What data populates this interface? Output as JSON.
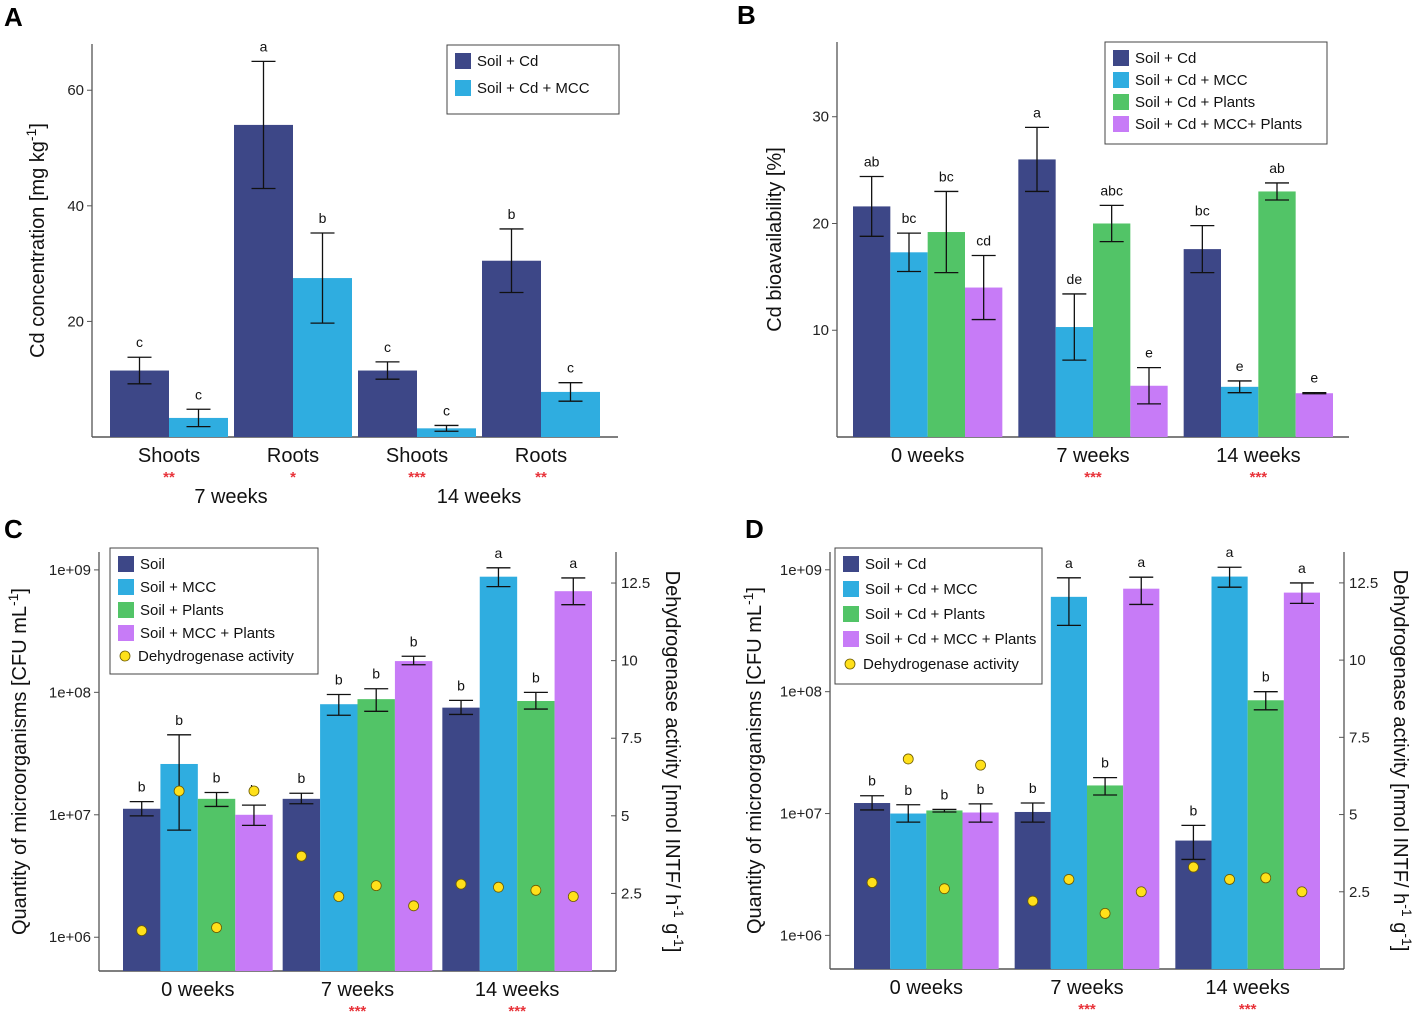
{
  "colors": {
    "navy": "#3d4787",
    "cyan": "#2fade0",
    "green": "#52c467",
    "violet": "#c77bf7",
    "dot": "#ffe01a",
    "stars": "#e8333a"
  },
  "chart_data": [
    {
      "panel": "A",
      "type": "bar",
      "ylabel": "Cd concentration [mg kg-1]",
      "ylim": [
        0,
        68
      ],
      "yticks": [
        20,
        40,
        60
      ],
      "groups": [
        "Shoots",
        "Roots",
        "Shoots",
        "Roots"
      ],
      "group_stars": [
        "**",
        "*",
        "***",
        "**"
      ],
      "supergroups": [
        {
          "label": "7 weeks",
          "span": [
            0,
            1
          ]
        },
        {
          "label": "14 weeks",
          "span": [
            2,
            3
          ]
        }
      ],
      "legend": "top-right",
      "series": [
        {
          "name": "Soil + Cd",
          "color": "navy",
          "values": [
            11.5,
            54,
            11.5,
            30.5
          ],
          "errors": [
            2.3,
            11,
            1.5,
            5.5
          ],
          "letters": [
            "c",
            "a",
            "c",
            "b"
          ]
        },
        {
          "name": "Soil + Cd + MCC",
          "color": "cyan",
          "values": [
            3.3,
            27.5,
            1.5,
            7.8
          ],
          "errors": [
            1.5,
            7.8,
            0.5,
            1.6
          ],
          "letters": [
            "c",
            "b",
            "c",
            "c"
          ]
        }
      ]
    },
    {
      "panel": "B",
      "type": "bar",
      "ylabel": "Cd bioavailability [%]",
      "ylim": [
        0,
        37
      ],
      "yticks": [
        10,
        20,
        30
      ],
      "groups": [
        "0 weeks",
        "7 weeks",
        "14 weeks"
      ],
      "group_stars": [
        "",
        "***",
        "***"
      ],
      "legend": "top-right",
      "series": [
        {
          "name": "Soil + Cd",
          "color": "navy",
          "values": [
            21.6,
            26.0,
            17.6
          ],
          "errors": [
            2.8,
            3.0,
            2.2
          ],
          "letters": [
            "ab",
            "a",
            "bc"
          ]
        },
        {
          "name": "Soil + Cd + MCC",
          "color": "cyan",
          "values": [
            17.3,
            10.3,
            4.7
          ],
          "errors": [
            1.8,
            3.1,
            0.55
          ],
          "letters": [
            "bc",
            "de",
            "e"
          ]
        },
        {
          "name": "Soil + Cd + Plants",
          "color": "green",
          "values": [
            19.2,
            20.0,
            23.0
          ],
          "errors": [
            3.8,
            1.7,
            0.8
          ],
          "letters": [
            "bc",
            "abc",
            "ab"
          ]
        },
        {
          "name": "Soil + Cd + MCC+ Plants",
          "color": "violet",
          "values": [
            14.0,
            4.8,
            4.1
          ],
          "errors": [
            3.0,
            1.7,
            0.05
          ],
          "letters": [
            "cd",
            "e",
            "e"
          ]
        }
      ]
    },
    {
      "panel": "C",
      "type": "bar",
      "ylabel": "Quantity of microorganisms [CFU mL-1]",
      "ylabel2": "Dehydrogenase activity [nmol INTF/ h-1 g-1]",
      "yscale": "log",
      "ylim": [
        530000.0,
        1400000000.0
      ],
      "yticks": [
        1000000.0,
        10000000.0,
        100000000.0,
        1000000000.0
      ],
      "yticklabels": [
        "1e+06",
        "1e+07",
        "1e+08",
        "1e+09"
      ],
      "y2lim": [
        0,
        13.5
      ],
      "y2ticks": [
        2.5,
        5,
        7.5,
        10,
        12.5
      ],
      "groups": [
        "0 weeks",
        "7 weeks",
        "14 weeks"
      ],
      "group_stars": [
        "",
        "***",
        "***"
      ],
      "legend": "top-left",
      "series": [
        {
          "name": "Soil",
          "color": "navy",
          "values": [
            11200000.0,
            13500000.0,
            75000000.0
          ],
          "err_lo": [
            9800000.0,
            12300000.0,
            66000000.0
          ],
          "err_hi": [
            12800000.0,
            15000000.0,
            86000000.0
          ],
          "letters": [
            "b",
            "b",
            "b"
          ],
          "dehydrogenase": [
            1.3,
            3.7,
            2.8
          ]
        },
        {
          "name": "Soil  + MCC",
          "color": "cyan",
          "values": [
            26000000.0,
            80000000.0,
            880000000.0
          ],
          "err_lo": [
            7500000.0,
            65000000.0,
            730000000.0
          ],
          "err_hi": [
            45000000.0,
            96000000.0,
            1040000000.0
          ],
          "letters": [
            "b",
            "b",
            "a"
          ],
          "dehydrogenase": [
            5.8,
            2.4,
            2.7
          ]
        },
        {
          "name": "Soil  + Plants",
          "color": "green",
          "values": [
            13500000.0,
            88000000.0,
            85000000.0
          ],
          "err_lo": [
            11700000.0,
            70000000.0,
            73000000.0
          ],
          "err_hi": [
            15200000.0,
            107000000.0,
            100000000.0
          ],
          "letters": [
            "b",
            "b",
            "b"
          ],
          "dehydrogenase": [
            1.4,
            2.75,
            2.6
          ]
        },
        {
          "name": "Soil + MCC + Plants",
          "color": "violet",
          "values": [
            10000000.0,
            180000000.0,
            670000000.0
          ],
          "err_lo": [
            8200000.0,
            168000000.0,
            520000000.0
          ],
          "err_hi": [
            12000000.0,
            197000000.0,
            860000000.0
          ],
          "letters": [
            "b",
            "b",
            "a"
          ],
          "dehydrogenase": [
            5.8,
            2.1,
            2.4
          ]
        }
      ],
      "dot_legend": "Dehydrogenase activity"
    },
    {
      "panel": "D",
      "type": "bar",
      "ylabel": "Quantity of microorganisms [CFU mL-1]",
      "ylabel2": "Dehydrogenase activity [nmol INTF/ h-1 g-1]",
      "yscale": "log",
      "ylim": [
        530000.0,
        1400000000.0
      ],
      "yticks": [
        1000000.0,
        10000000.0,
        100000000.0,
        1000000000.0
      ],
      "yticklabels": [
        "1e+06",
        "1e+07",
        "1e+08",
        "1e+09"
      ],
      "y2lim": [
        0,
        13.5
      ],
      "y2ticks": [
        2.5,
        5,
        7.5,
        10,
        12.5
      ],
      "groups": [
        "0 weeks",
        "7 weeks",
        "14 weeks"
      ],
      "group_stars": [
        "",
        "***",
        "***"
      ],
      "legend": "top-left",
      "series": [
        {
          "name": "Soil + Cd",
          "color": "navy",
          "values": [
            12200000.0,
            10300000.0,
            6000000.0
          ],
          "err_lo": [
            10700000.0,
            8500000.0,
            4200000.0
          ],
          "err_hi": [
            14000000.0,
            12200000.0,
            8000000.0
          ],
          "letters": [
            "b",
            "b",
            "b"
          ],
          "dehydrogenase": [
            2.8,
            2.2,
            3.3
          ]
        },
        {
          "name": "Soil + Cd + MCC",
          "color": "cyan",
          "values": [
            10000000.0,
            600000000.0,
            880000000.0
          ],
          "err_lo": [
            8500000.0,
            350000000.0,
            720000000.0
          ],
          "err_hi": [
            11800000.0,
            860000000.0,
            1050000000.0
          ],
          "letters": [
            "b",
            "a",
            "a"
          ],
          "dehydrogenase": [
            6.8,
            2.9,
            2.9
          ]
        },
        {
          "name": "Soil + Cd + Plants",
          "color": "green",
          "values": [
            10600000.0,
            17000000.0,
            85000000.0
          ],
          "err_lo": [
            10300000.0,
            14200000.0,
            71000000.0
          ],
          "err_hi": [
            10800000.0,
            19700000.0,
            100000000.0
          ],
          "letters": [
            "b",
            "b",
            "b"
          ],
          "dehydrogenase": [
            2.6,
            1.8,
            2.95
          ]
        },
        {
          "name": "Soil + Cd + MCC + Plants",
          "color": "violet",
          "values": [
            10200000.0,
            700000000.0,
            650000000.0
          ],
          "err_lo": [
            8500000.0,
            520000000.0,
            530000000.0
          ],
          "err_hi": [
            12000000.0,
            870000000.0,
            780000000.0
          ],
          "letters": [
            "b",
            "a",
            "a"
          ],
          "dehydrogenase": [
            6.6,
            2.5,
            2.5
          ]
        }
      ],
      "dot_legend": "Dehydrogenase activity"
    }
  ]
}
